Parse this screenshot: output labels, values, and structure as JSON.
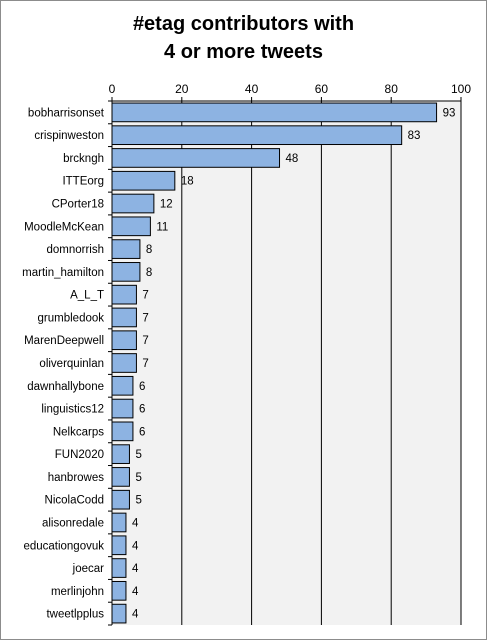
{
  "chart_data": {
    "type": "bar",
    "orientation": "horizontal",
    "title_lines": [
      "#etag contributors with",
      "4 or more tweets"
    ],
    "xlabel": "",
    "ylabel": "",
    "xlim": [
      0,
      100
    ],
    "xticks": [
      0,
      20,
      40,
      60,
      80,
      100
    ],
    "x_axis_position": "top",
    "grid": true,
    "legend": "none",
    "bar_color": "#8db3e2",
    "bar_border_color": "#000000",
    "plot_background": "#f2f2f2",
    "categories": [
      "bobharrisonset",
      "crispinweston",
      "brckngh",
      "ITTEorg",
      "CPorter18",
      "MoodleMcKean",
      "domnorrish",
      "martin_hamilton",
      "A_L_T",
      "grumbledook",
      "MarenDeepwell",
      "oliverquinlan",
      "dawnhallybone",
      "linguistics12",
      "Nelkcarps",
      "FUN2020",
      "hanbrowes",
      "NicolaCodd",
      "alisonredale",
      "educationgovuk",
      "joecar",
      "merlinjohn",
      "tweetlpplus"
    ],
    "values": [
      93,
      83,
      48,
      18,
      12,
      11,
      8,
      8,
      7,
      7,
      7,
      7,
      6,
      6,
      6,
      5,
      5,
      5,
      4,
      4,
      4,
      4,
      4
    ]
  }
}
